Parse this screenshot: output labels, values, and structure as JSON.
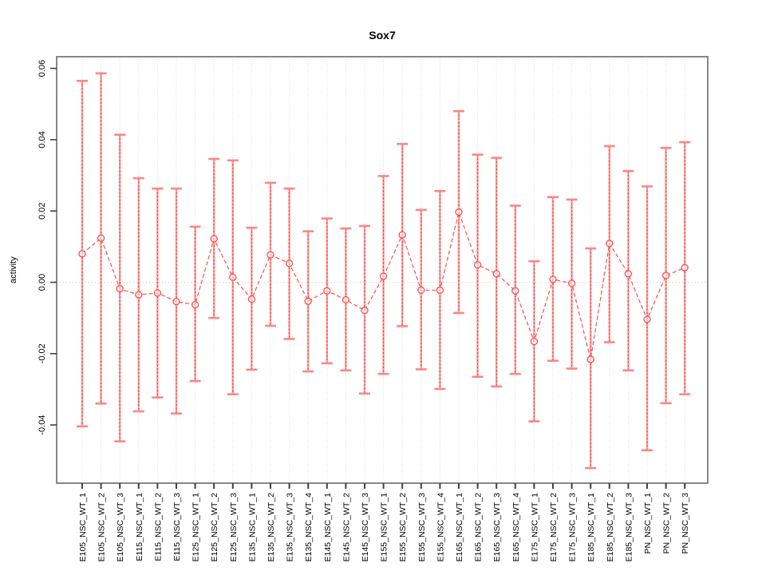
{
  "figure": {
    "background": "#ffffff"
  },
  "colors": {
    "point_line": "#ff4a4a",
    "errorbar": "#ff9b9b",
    "errorbar_core": "#e03030",
    "cap": "#ff8585",
    "grid": "#dcdcdc",
    "zero_line": "#c8c8c8",
    "box": "#878787",
    "tick": "#404040",
    "text": "#000000"
  },
  "chart_data": {
    "type": "line",
    "subtype": "means-with-error-bars",
    "title": "Sox7",
    "xlabel": "",
    "ylabel": "activity",
    "ylim": [
      -0.056,
      0.063
    ],
    "yticks": [
      -0.04,
      -0.02,
      0,
      0.02,
      0.04,
      0.06
    ],
    "ytick_labels": [
      "-0.04",
      "-0.02",
      "0.00",
      "0.02",
      "0.04",
      "0.06"
    ],
    "grid": "vertical-dotted",
    "zero_line": true,
    "legend_position": "none",
    "marker": "open-circle",
    "line_style": "dashed",
    "categories": [
      "E105_NSC_WT_1",
      "E105_NSC_WT_2",
      "E105_NSC_WT_3",
      "E115_NSC_WT_1",
      "E115_NSC_WT_2",
      "E115_NSC_WT_3",
      "E125_NSC_WT_1",
      "E125_NSC_WT_2",
      "E125_NSC_WT_3",
      "E135_NSC_WT_1",
      "E135_NSC_WT_2",
      "E135_NSC_WT_3",
      "E135_NSC_WT_4",
      "E145_NSC_WT_1",
      "E145_NSC_WT_2",
      "E145_NSC_WT_3",
      "E155_NSC_WT_1",
      "E155_NSC_WT_2",
      "E155_NSC_WT_3",
      "E155_NSC_WT_4",
      "E165_NSC_WT_1",
      "E165_NSC_WT_2",
      "E165_NSC_WT_3",
      "E165_NSC_WT_4",
      "E175_NSC_WT_1",
      "E175_NSC_WT_2",
      "E175_NSC_WT_3",
      "E185_NSC_WT_1",
      "E185_NSC_WT_2",
      "E185_NSC_WT_3",
      "PN_NSC_WT_1",
      "PN_NSC_WT_2",
      "PN_NSC_WT_3"
    ],
    "series": [
      {
        "name": "activity",
        "values": [
          0.008,
          0.0124,
          -0.0018,
          -0.0035,
          -0.003,
          -0.0054,
          -0.0063,
          0.0122,
          0.0014,
          -0.0047,
          0.0077,
          0.0053,
          -0.0053,
          -0.0024,
          -0.0049,
          -0.0079,
          0.0017,
          0.0133,
          -0.0022,
          -0.0022,
          0.0197,
          0.0049,
          0.0024,
          -0.0024,
          -0.0166,
          0.0008,
          -0.0003,
          -0.0216,
          0.0109,
          0.0024,
          -0.0104,
          0.0019,
          0.0041
        ],
        "upper": [
          0.0565,
          0.0586,
          0.0414,
          0.0292,
          0.0263,
          0.0263,
          0.0156,
          0.0346,
          0.0342,
          0.0153,
          0.0279,
          0.0263,
          0.0143,
          0.0179,
          0.0151,
          0.0158,
          0.0298,
          0.0388,
          0.0203,
          0.0256,
          0.048,
          0.0358,
          0.0349,
          0.0215,
          0.0059,
          0.0239,
          0.0232,
          0.0095,
          0.0382,
          0.0312,
          0.0269,
          0.0377,
          0.0393
        ],
        "lower": [
          -0.0404,
          -0.034,
          -0.0446,
          -0.0362,
          -0.0323,
          -0.0368,
          -0.0277,
          -0.01,
          -0.0314,
          -0.0245,
          -0.0122,
          -0.0159,
          -0.025,
          -0.0227,
          -0.0247,
          -0.0312,
          -0.0257,
          -0.0123,
          -0.0244,
          -0.0299,
          -0.0086,
          -0.0265,
          -0.0292,
          -0.0257,
          -0.039,
          -0.022,
          -0.0242,
          -0.0521,
          -0.0168,
          -0.0247,
          -0.0471,
          -0.0339,
          -0.0314
        ]
      }
    ]
  }
}
